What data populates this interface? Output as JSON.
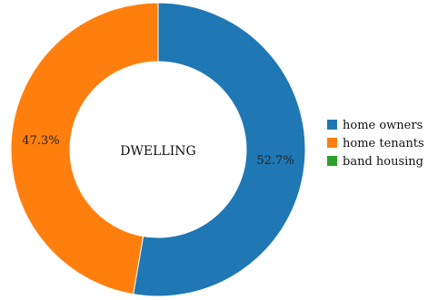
{
  "chart_data": {
    "type": "pie",
    "center_label": "DWELLING",
    "slices": [
      {
        "name": "home owners",
        "value": 52.7,
        "label": "52.7%",
        "color": "#1f77b4"
      },
      {
        "name": "home tenants",
        "value": 47.3,
        "label": "47.3%",
        "color": "#ff7f0e"
      },
      {
        "name": "band housing",
        "value": 0,
        "label": "",
        "color": "#2ca02c"
      }
    ],
    "legend_position": "right"
  }
}
